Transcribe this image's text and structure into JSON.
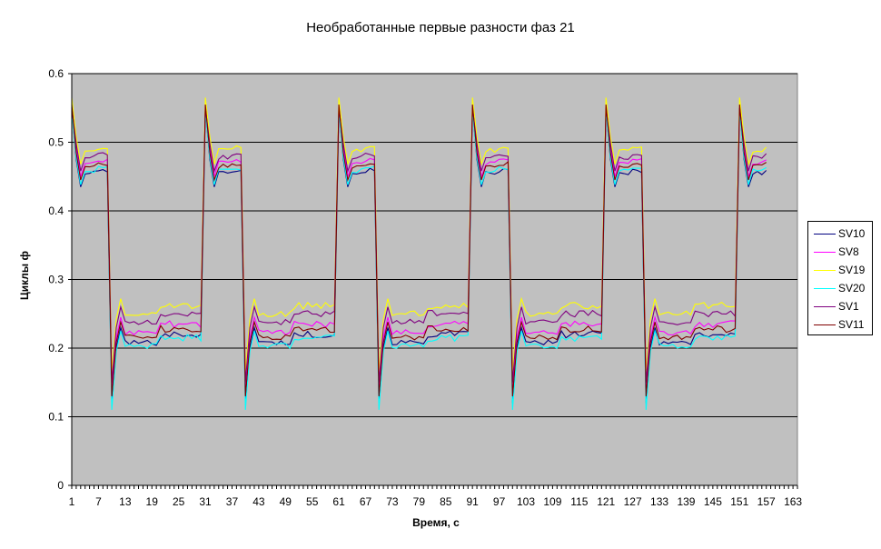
{
  "chart_data": {
    "type": "line",
    "title": "Необработанные первые разности фаз 21",
    "xlabel": "Время, с",
    "ylabel": "Циклы ф",
    "ylim": [
      0,
      0.6
    ],
    "yticks": [
      "0",
      "0.1",
      "0.2",
      "0.3",
      "0.4",
      "0.5",
      "0.6"
    ],
    "xlim": [
      1,
      164
    ],
    "xticks": [
      "1",
      "7",
      "13",
      "19",
      "25",
      "31",
      "37",
      "43",
      "49",
      "55",
      "61",
      "67",
      "73",
      "79",
      "85",
      "91",
      "97",
      "103",
      "109",
      "115",
      "121",
      "127",
      "133",
      "139",
      "145",
      "151",
      "157",
      "163"
    ],
    "grid": "horizontal",
    "plot_background": "#c0c0c0",
    "legend_position": "right",
    "period_s": 30,
    "transition_times": [
      10,
      30,
      40,
      60,
      70,
      90,
      100,
      120,
      130,
      150
    ],
    "series": [
      {
        "name": "SV10",
        "color": "#000080",
        "high_level": 0.455,
        "low_level": 0.22,
        "spike_top": 0.55,
        "spike_bottom": 0.12
      },
      {
        "name": "SV8",
        "color": "#ff00ff",
        "high_level": 0.47,
        "low_level": 0.235,
        "spike_top": 0.545,
        "spike_bottom": 0.135
      },
      {
        "name": "SV19",
        "color": "#ffff00",
        "high_level": 0.488,
        "low_level": 0.262,
        "spike_top": 0.565,
        "spike_bottom": 0.165
      },
      {
        "name": "SV20",
        "color": "#00ffff",
        "high_level": 0.458,
        "low_level": 0.215,
        "spike_top": 0.545,
        "spike_bottom": 0.11
      },
      {
        "name": "SV1",
        "color": "#800080",
        "high_level": 0.478,
        "low_level": 0.25,
        "spike_top": 0.55,
        "spike_bottom": 0.15
      },
      {
        "name": "SV11",
        "color": "#800000",
        "high_level": 0.465,
        "low_level": 0.228,
        "spike_top": 0.555,
        "spike_bottom": 0.13
      }
    ]
  }
}
